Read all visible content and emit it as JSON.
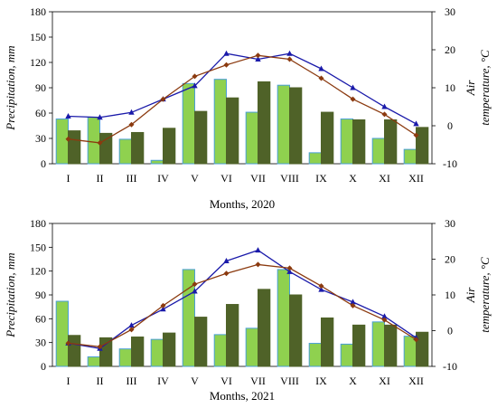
{
  "chart_data": [
    {
      "type": "bar",
      "xlabel": "Months, 2020",
      "ylabel": "Precipitation, mm",
      "y2label_line1": "Air",
      "y2label_line2": "temperature, °C",
      "categories": [
        "I",
        "II",
        "III",
        "IV",
        "V",
        "VI",
        "VII",
        "VIII",
        "IX",
        "X",
        "XI",
        "XII"
      ],
      "ylim": [
        0,
        180
      ],
      "yticks": [
        0,
        30,
        60,
        90,
        120,
        150,
        180
      ],
      "y2lim": [
        -10,
        30
      ],
      "y2ticks": [
        -10,
        0,
        10,
        20,
        30
      ],
      "bar_series": [
        {
          "values": [
            53,
            55,
            29,
            4,
            95,
            100,
            61,
            93,
            13,
            53,
            30,
            17
          ],
          "color": "#8fd14f",
          "edge": "#4a9fd6"
        },
        {
          "values": [
            39,
            36,
            37,
            42,
            62,
            78,
            97,
            90,
            61,
            52,
            52,
            43
          ],
          "color": "#4f6228",
          "edge": "#4f6228"
        }
      ],
      "line_series": [
        {
          "axis": "right",
          "marker": "triangle",
          "color": "#1a1aaa",
          "values": [
            2.5,
            2.2,
            3.5,
            7,
            10.5,
            19,
            17.5,
            19,
            15,
            10,
            5,
            0.5
          ]
        },
        {
          "axis": "right",
          "marker": "diamond",
          "color": "#8b3a0f",
          "values": [
            -3.5,
            -4.5,
            0.3,
            7,
            13,
            16,
            18.5,
            17.5,
            12.5,
            7,
            3,
            -2.5
          ]
        }
      ]
    },
    {
      "type": "bar",
      "xlabel": "Months, 2021",
      "ylabel": "Precipitation, mm",
      "y2label_line1": "Air",
      "y2label_line2": "temperature, °C",
      "categories": [
        "I",
        "II",
        "III",
        "IV",
        "V",
        "VI",
        "VII",
        "VIII",
        "IX",
        "X",
        "XI",
        "XII"
      ],
      "ylim": [
        0,
        180
      ],
      "yticks": [
        0,
        30,
        60,
        90,
        120,
        150,
        180
      ],
      "y2lim": [
        -10,
        30
      ],
      "y2ticks": [
        -10,
        0,
        10,
        20,
        30
      ],
      "bar_series": [
        {
          "values": [
            82,
            12,
            22,
            34,
            122,
            40,
            48,
            122,
            29,
            28,
            56,
            38
          ],
          "color": "#8fd14f",
          "edge": "#4a9fd6"
        },
        {
          "values": [
            39,
            36,
            37,
            42,
            62,
            78,
            97,
            90,
            61,
            52,
            52,
            43
          ],
          "color": "#4f6228",
          "edge": "#4f6228"
        }
      ],
      "line_series": [
        {
          "axis": "right",
          "marker": "triangle",
          "color": "#1a1aaa",
          "values": [
            -3.5,
            -5,
            1.5,
            6,
            11,
            19.5,
            22.5,
            16.5,
            11.5,
            8,
            4,
            -2
          ]
        },
        {
          "axis": "right",
          "marker": "diamond",
          "color": "#8b3a0f",
          "values": [
            -3.5,
            -4.5,
            0.3,
            7,
            13,
            16,
            18.5,
            17.5,
            12.5,
            7,
            3,
            -2.5
          ]
        }
      ]
    }
  ]
}
